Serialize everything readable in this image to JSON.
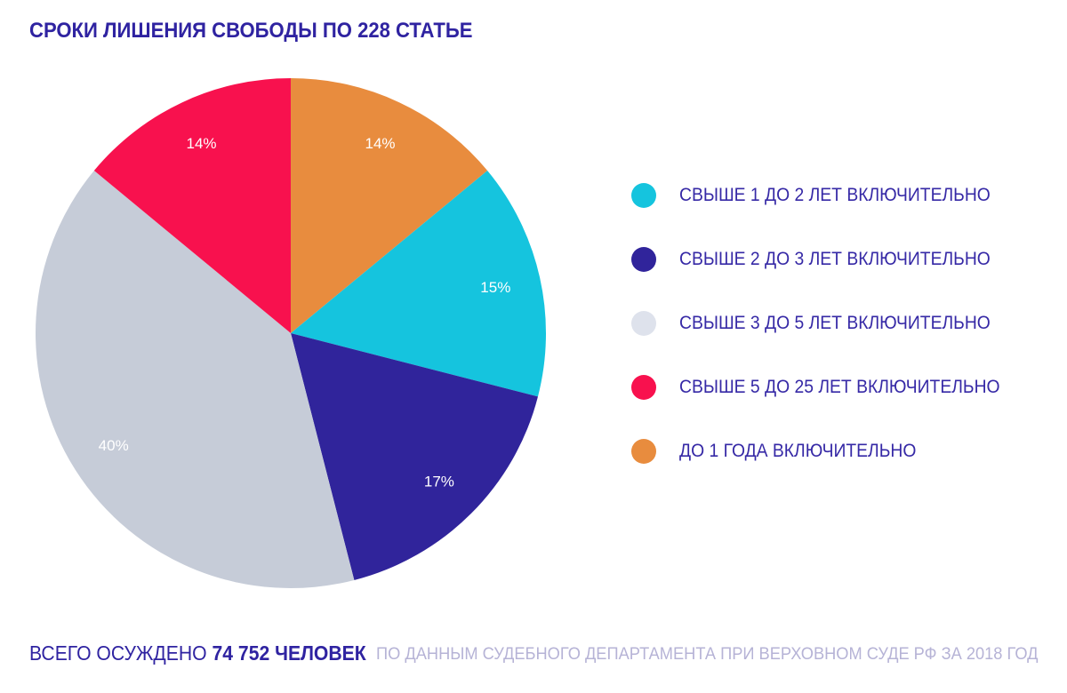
{
  "title": "СРОКИ ЛИШЕНИЯ СВОБОДЫ ПО 228 СТАТЬЕ",
  "chart_data": {
    "type": "pie",
    "title": "СРОКИ ЛИШЕНИЯ СВОБОДЫ ПО 228 СТАТЬЕ",
    "start_angle_deg": 0,
    "direction": "clockwise",
    "legend_position": "right",
    "slices": [
      {
        "label": "ДО 1 ГОДА ВКЛЮЧИТЕЛЬНО",
        "value": 14,
        "percent_label": "14%",
        "color": "#E88C3E"
      },
      {
        "label": "СВЫШЕ 1 ДО 2 ЛЕТ ВКЛЮЧИТЕЛЬНО",
        "value": 15,
        "percent_label": "15%",
        "color": "#15C4DE"
      },
      {
        "label": "СВЫШЕ 2 ДО 3 ЛЕТ ВКЛЮЧИТЕЛЬНО",
        "value": 17,
        "percent_label": "17%",
        "color": "#30249B"
      },
      {
        "label": "СВЫШЕ 3 ДО 5 ЛЕТ ВКЛЮЧИТЕЛЬНО",
        "value": 40,
        "percent_label": "40%",
        "color": "#C6CCD8"
      },
      {
        "label": "СВЫШЕ 5 ДО 25 ЛЕТ ВКЛЮЧИТЕЛЬНО",
        "value": 14,
        "percent_label": "14%",
        "color": "#F8114E"
      }
    ]
  },
  "legend": {
    "items": [
      {
        "label": "СВЫШЕ 1 ДО 2 ЛЕТ ВКЛЮЧИТЕЛЬНО",
        "color": "#15C4DE"
      },
      {
        "label": "СВЫШЕ 2 ДО 3 ЛЕТ ВКЛЮЧИТЕЛЬНО",
        "color": "#30249B"
      },
      {
        "label": "СВЫШЕ 3 ДО 5 ЛЕТ ВКЛЮЧИТЕЛЬНО",
        "color": "#DEE2EC"
      },
      {
        "label": "СВЫШЕ 5 ДО 25 ЛЕТ ВКЛЮЧИТЕЛЬНО",
        "color": "#F8114E"
      },
      {
        "label": "ДО 1 ГОДА ВКЛЮЧИТЕЛЬНО",
        "color": "#E88C3E"
      }
    ]
  },
  "footer": {
    "total_prefix": "ВСЕГО ОСУЖДЕНО ",
    "total_value": "74 752 ЧЕЛОВЕК",
    "source": "ПО ДАННЫМ СУДЕБНОГО ДЕПАРТАМЕНТА ПРИ ВЕРХОВНОМ СУДЕ РФ ЗА 2018 ГОД"
  },
  "colors": {
    "background": "#FFFFFF",
    "title_text": "#2F23A1",
    "legend_text": "#3629A6",
    "total_text": "#2F23A1",
    "source_text": "#B6B3D6",
    "slice_label_text": "#FFFFFF"
  }
}
